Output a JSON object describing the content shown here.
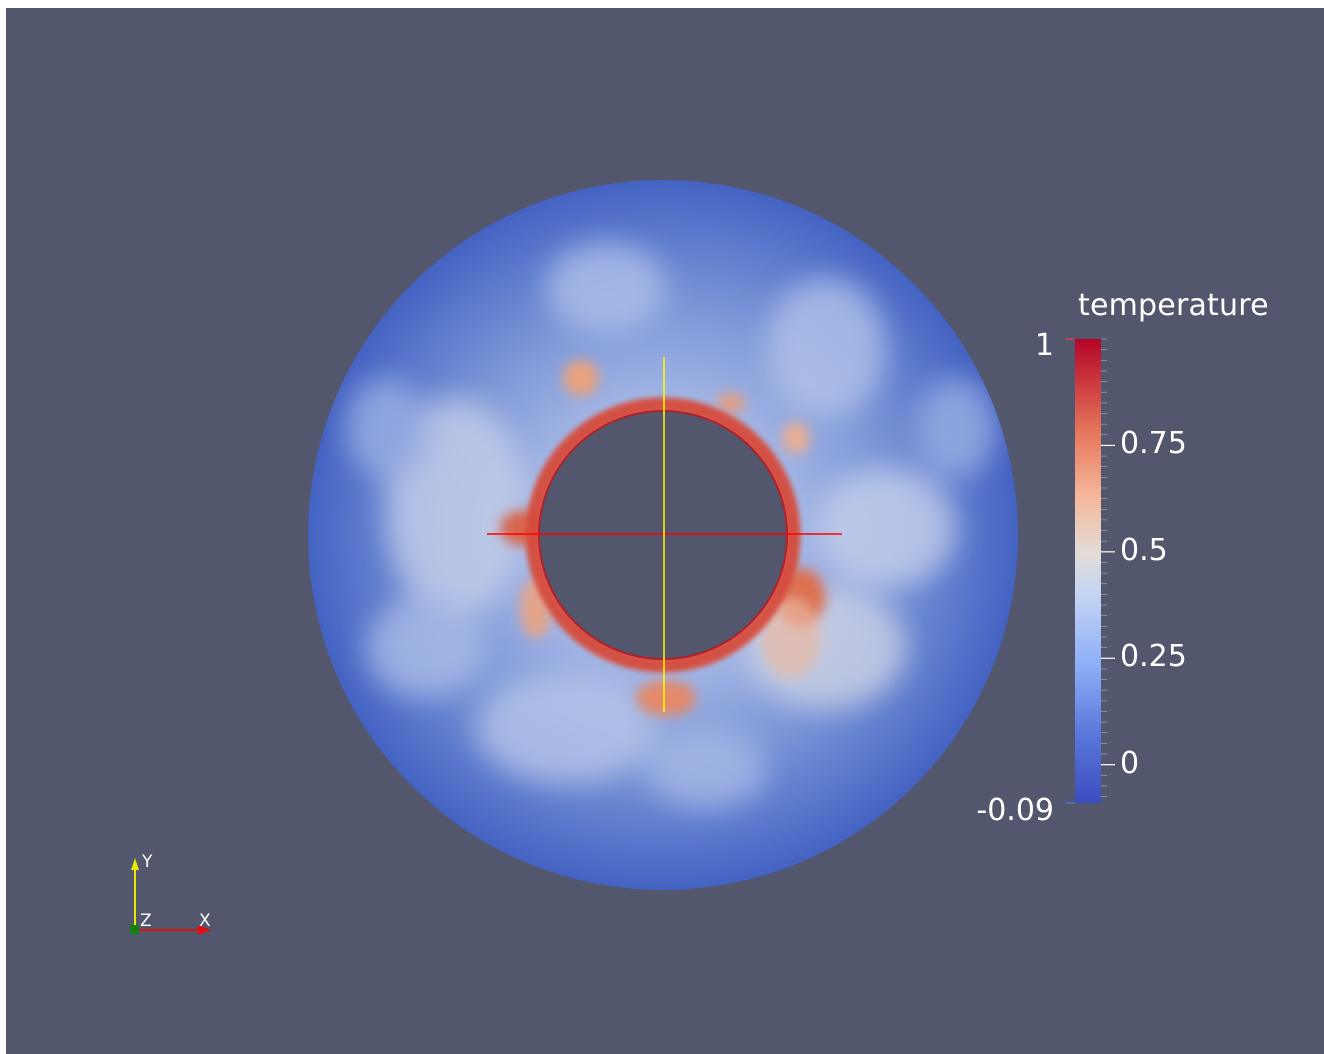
{
  "colorbar": {
    "title": "temperature",
    "range": [
      -0.09,
      1
    ],
    "max_label": "1",
    "min_label": "-0.09",
    "ticks": [
      {
        "value": 0.75,
        "label": "0.75"
      },
      {
        "value": 0.5,
        "label": "0.5"
      },
      {
        "value": 0.25,
        "label": "0.25"
      },
      {
        "value": 0,
        "label": "0"
      }
    ],
    "colors": {
      "low": "#3b4cc0",
      "mid": "#dddddd",
      "high": "#b40426"
    }
  },
  "orientation_axes": {
    "x_label": "X",
    "y_label": "Y",
    "z_label": "Z",
    "x_color": "#e01010",
    "y_color": "#e8e800",
    "z_color": "#138013"
  },
  "scene": {
    "background": "#52576e",
    "horizontal_line_color": "#ff0000",
    "vertical_line_color": "#ffff00"
  }
}
